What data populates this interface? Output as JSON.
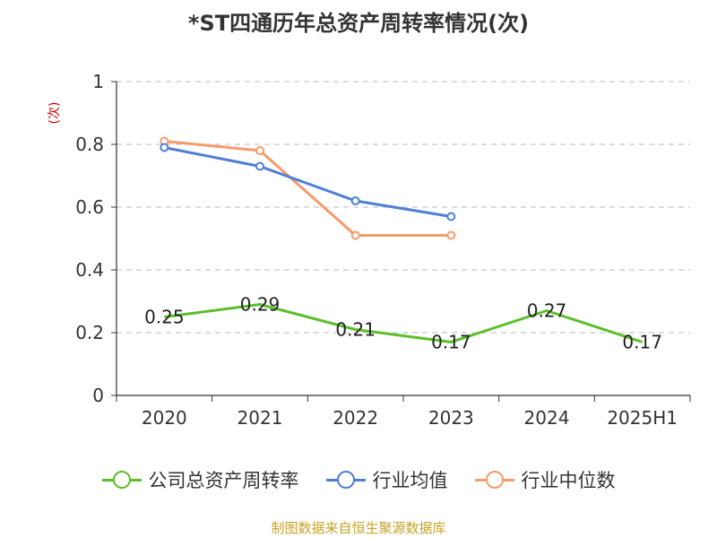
{
  "title": "*ST四通历年总资产周转率情况(次)",
  "unit_label": "(次)",
  "source": "制图数据来自恒生聚源数据库",
  "colors": {
    "company": "#5cbf2a",
    "industry_avg": "#4e7fd6",
    "industry_median": "#f79a6a"
  },
  "chart_data": {
    "type": "line",
    "title": "*ST四通历年总资产周转率情况(次)",
    "ylabel": "(次)",
    "categories": [
      "2020",
      "2021",
      "2022",
      "2023",
      "2024",
      "2025H1"
    ],
    "ylim": [
      0,
      1
    ],
    "yticks": [
      "0",
      "0.2",
      "0.4",
      "0.6",
      "0.8",
      "1"
    ],
    "grid": true,
    "legend_position": "bottom",
    "series": [
      {
        "name": "公司总资产周转率",
        "values": [
          0.25,
          0.29,
          0.21,
          0.17,
          0.27,
          0.17
        ],
        "labels": [
          "0.25",
          "0.29",
          "0.21",
          "0.17",
          "0.27",
          "0.17"
        ]
      },
      {
        "name": "行业均值",
        "values": [
          0.79,
          0.73,
          0.62,
          0.57,
          null,
          null
        ]
      },
      {
        "name": "行业中位数",
        "values": [
          0.81,
          0.78,
          0.51,
          0.51,
          null,
          null
        ]
      }
    ]
  }
}
